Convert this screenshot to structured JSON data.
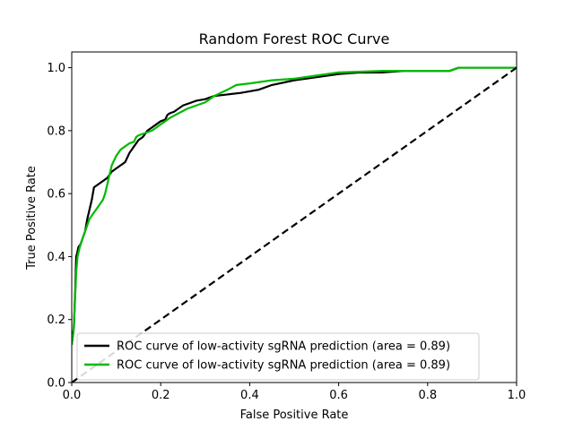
{
  "chart_data": {
    "type": "line",
    "title": "Random Forest ROC Curve",
    "xlabel": "False Positive Rate",
    "ylabel": "True Positive Rate",
    "xlim": [
      0.0,
      1.0
    ],
    "ylim": [
      0.0,
      1.05
    ],
    "xticks": [
      0.0,
      0.2,
      0.4,
      0.6,
      0.8,
      1.0
    ],
    "yticks": [
      0.0,
      0.2,
      0.4,
      0.6,
      0.8,
      1.0
    ],
    "xtick_labels": [
      "0.0",
      "0.2",
      "0.4",
      "0.6",
      "0.8",
      "1.0"
    ],
    "ytick_labels": [
      "0.0",
      "0.2",
      "0.4",
      "0.6",
      "0.8",
      "1.0"
    ],
    "grid": false,
    "legend_position": "lower-right",
    "series": [
      {
        "name": "ROC curve of low-activity sgRNA prediction (area = 0.89)",
        "color": "#000000",
        "style": "solid",
        "x": [
          0.0,
          0.005,
          0.008,
          0.01,
          0.012,
          0.015,
          0.02,
          0.025,
          0.03,
          0.035,
          0.04,
          0.045,
          0.05,
          0.06,
          0.07,
          0.08,
          0.09,
          0.1,
          0.11,
          0.12,
          0.13,
          0.14,
          0.15,
          0.16,
          0.17,
          0.18,
          0.19,
          0.2,
          0.21,
          0.215,
          0.22,
          0.23,
          0.24,
          0.25,
          0.26,
          0.27,
          0.28,
          0.3,
          0.32,
          0.35,
          0.38,
          0.4,
          0.42,
          0.45,
          0.5,
          0.55,
          0.6,
          0.65,
          0.7,
          0.75,
          0.8,
          0.85,
          0.87,
          0.9,
          1.0
        ],
        "y": [
          0.12,
          0.18,
          0.3,
          0.4,
          0.41,
          0.43,
          0.44,
          0.46,
          0.48,
          0.52,
          0.55,
          0.58,
          0.62,
          0.63,
          0.64,
          0.65,
          0.67,
          0.68,
          0.69,
          0.7,
          0.73,
          0.75,
          0.77,
          0.78,
          0.8,
          0.81,
          0.82,
          0.83,
          0.835,
          0.85,
          0.855,
          0.86,
          0.87,
          0.88,
          0.885,
          0.89,
          0.895,
          0.9,
          0.91,
          0.915,
          0.92,
          0.925,
          0.93,
          0.945,
          0.96,
          0.97,
          0.98,
          0.985,
          0.985,
          0.99,
          0.99,
          0.99,
          1.0,
          1.0,
          1.0
        ]
      },
      {
        "name": "ROC curve of low-activity sgRNA prediction (area = 0.89)",
        "color": "#00bb00",
        "style": "solid",
        "x": [
          0.0,
          0.004,
          0.007,
          0.01,
          0.013,
          0.018,
          0.025,
          0.03,
          0.035,
          0.04,
          0.045,
          0.05,
          0.06,
          0.07,
          0.075,
          0.08,
          0.085,
          0.09,
          0.1,
          0.11,
          0.12,
          0.13,
          0.14,
          0.145,
          0.15,
          0.16,
          0.17,
          0.18,
          0.19,
          0.2,
          0.22,
          0.24,
          0.26,
          0.28,
          0.3,
          0.32,
          0.35,
          0.37,
          0.4,
          0.45,
          0.5,
          0.55,
          0.6,
          0.7,
          0.75,
          0.8,
          0.85,
          0.87,
          0.9,
          1.0
        ],
        "y": [
          0.12,
          0.16,
          0.25,
          0.35,
          0.4,
          0.43,
          0.46,
          0.48,
          0.5,
          0.52,
          0.53,
          0.54,
          0.56,
          0.58,
          0.6,
          0.63,
          0.66,
          0.69,
          0.72,
          0.74,
          0.75,
          0.76,
          0.765,
          0.78,
          0.785,
          0.79,
          0.795,
          0.8,
          0.81,
          0.82,
          0.84,
          0.855,
          0.87,
          0.88,
          0.89,
          0.91,
          0.93,
          0.945,
          0.95,
          0.96,
          0.965,
          0.975,
          0.985,
          0.99,
          0.99,
          0.99,
          0.99,
          1.0,
          1.0,
          1.0
        ]
      },
      {
        "color": "#000000",
        "style": "dashed",
        "x": [
          0.0,
          1.0
        ],
        "y": [
          0.0,
          1.0
        ]
      }
    ]
  }
}
